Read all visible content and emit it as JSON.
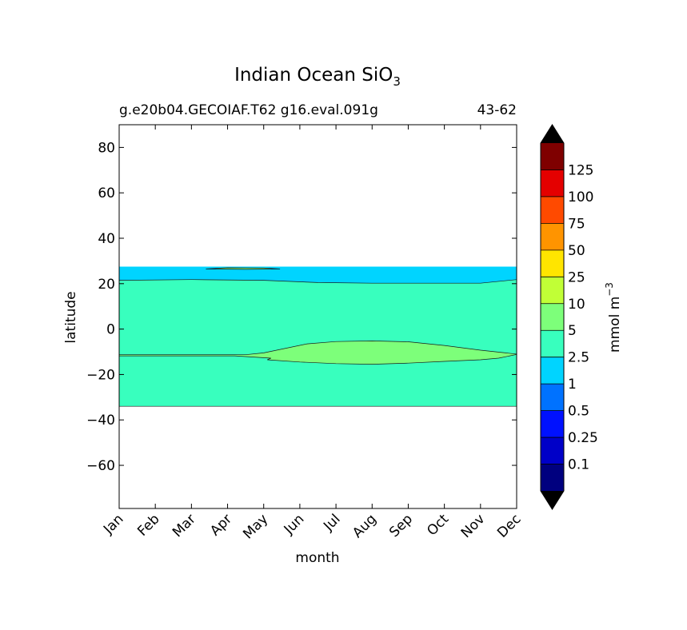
{
  "chart_data": {
    "type": "heatmap",
    "title": "Indian Ocean SiO",
    "title_subscript": "3",
    "subtitle_left": "g.e20b04.GECOIAF.T62 g16.eval.091g",
    "subtitle_right": "43-62",
    "xlabel": "month",
    "ylabel": "latitude",
    "x_categories": [
      "Jan",
      "Feb",
      "Mar",
      "Apr",
      "May",
      "Jun",
      "Jul",
      "Aug",
      "Sep",
      "Oct",
      "Nov",
      "Dec"
    ],
    "xlim": [
      1,
      12
    ],
    "ylim": [
      -79,
      90
    ],
    "y_ticks": [
      80,
      60,
      40,
      20,
      0,
      -20,
      -40,
      -60
    ],
    "y_tick_labels": [
      "80",
      "60",
      "40",
      "20",
      "0",
      "−20",
      "−40",
      "−60"
    ],
    "grid": false,
    "colorbar": {
      "label": "mmol m",
      "label_superscript": "−3",
      "levels": [
        "0.1",
        "0.25",
        "0.5",
        "1",
        "2.5",
        "5",
        "10",
        "25",
        "50",
        "75",
        "100",
        "125"
      ],
      "colors": [
        "#00007f",
        "#0000c8",
        "#0011ff",
        "#0072ff",
        "#00d4ff",
        "#38ffbe",
        "#7dff7a",
        "#c1ff36",
        "#ffe500",
        "#ff9400",
        "#ff4a00",
        "#e40000",
        "#7f0000"
      ],
      "under_color": "#000000",
      "over_color": "#000000"
    },
    "regions": [
      {
        "level_range": "1-2.5",
        "color": "#00d4ff",
        "lat_range": [
          -34,
          27.5
        ]
      },
      {
        "level_range": "2.5-5",
        "color": "#38ffbe",
        "lat_range": [
          -34,
          21.5
        ],
        "north_edge": [
          [
            1,
            21.5
          ],
          [
            3,
            21.8
          ],
          [
            5,
            21.5
          ],
          [
            6.5,
            20.5
          ],
          [
            8,
            20.2
          ],
          [
            10,
            20.2
          ],
          [
            11,
            20.2
          ],
          [
            12,
            21.8
          ]
        ]
      },
      {
        "level_range": "5-10",
        "color": "#7dff7a",
        "north_edge": [
          [
            1,
            -11.3
          ],
          [
            3,
            -11.3
          ],
          [
            4.5,
            -11.3
          ],
          [
            5,
            -10.5
          ],
          [
            6.2,
            -6.5
          ],
          [
            7,
            -5.5
          ],
          [
            8,
            -5.2
          ],
          [
            9,
            -5.6
          ],
          [
            10,
            -7.2
          ],
          [
            11,
            -9.3
          ],
          [
            11.7,
            -10.5
          ],
          [
            12,
            -11
          ]
        ],
        "south_edge": [
          [
            12,
            -11.2
          ],
          [
            11.5,
            -12.8
          ],
          [
            11,
            -13.5
          ],
          [
            10,
            -14.2
          ],
          [
            9,
            -15
          ],
          [
            8,
            -15.5
          ],
          [
            7,
            -15.2
          ],
          [
            6,
            -14.5
          ],
          [
            5.1,
            -13.5
          ],
          [
            5.2,
            -12.8
          ],
          [
            4.2,
            -11.8
          ],
          [
            1,
            -11.8
          ]
        ]
      },
      {
        "level_range": "5-10",
        "color": "#7dff7a",
        "north_edge": [
          [
            3.4,
            26.5
          ],
          [
            4,
            27
          ],
          [
            5,
            26.9
          ],
          [
            5.45,
            26.5
          ]
        ],
        "south_edge": [
          [
            5.45,
            26.5
          ],
          [
            4.5,
            26.3
          ],
          [
            3.4,
            26.5
          ]
        ]
      }
    ]
  }
}
